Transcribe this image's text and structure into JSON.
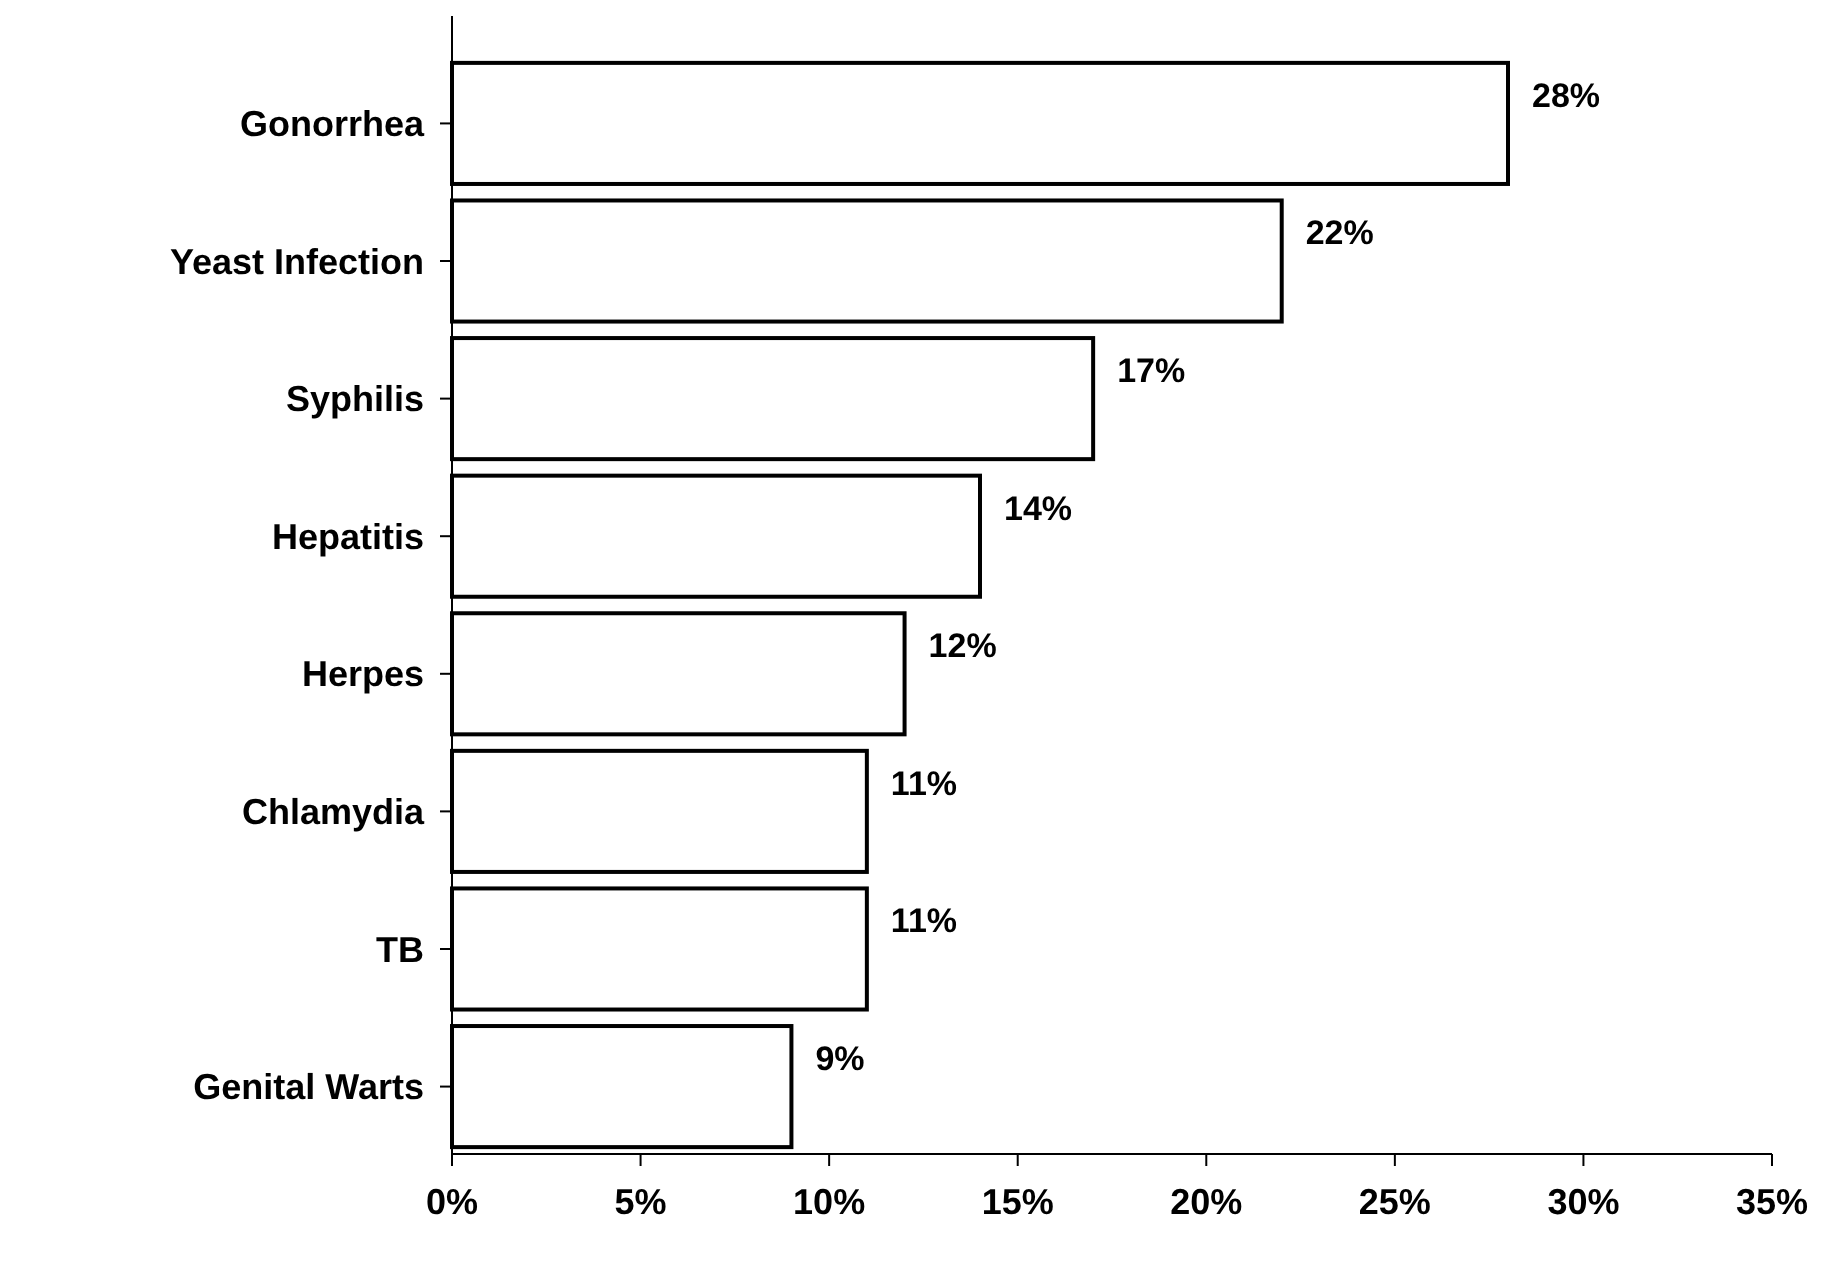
{
  "chart_data": {
    "type": "bar",
    "orientation": "horizontal",
    "categories": [
      "Gonorrhea",
      "Yeast Infection",
      "Syphilis",
      "Hepatitis",
      "Herpes",
      "Chlamydia",
      "TB",
      "Genital Warts"
    ],
    "values": [
      28,
      22,
      17,
      14,
      12,
      11,
      11,
      9
    ],
    "value_labels": [
      "28%",
      "22%",
      "17%",
      "14%",
      "12%",
      "11%",
      "11%",
      "9%"
    ],
    "color": "#ffffff",
    "xlim": [
      0,
      35
    ],
    "xticks": [
      {
        "value": 0,
        "label": "0%"
      },
      {
        "value": 5,
        "label": "5%"
      },
      {
        "value": 10,
        "label": "10%"
      },
      {
        "value": 15,
        "label": "15%"
      },
      {
        "value": 20,
        "label": "20%"
      },
      {
        "value": 25,
        "label": "25%"
      },
      {
        "value": 30,
        "label": "30%"
      },
      {
        "value": 35,
        "label": "35%"
      }
    ],
    "grid": false
  }
}
